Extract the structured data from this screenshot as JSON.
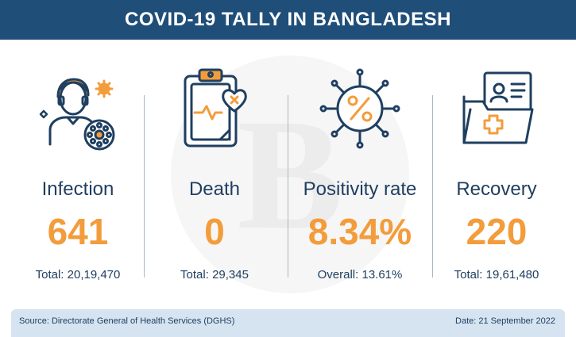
{
  "header": {
    "title": "COVID-19 TALLY IN BANGLADESH"
  },
  "watermark": {
    "letter": "B"
  },
  "colors": {
    "header": "#1f4e79",
    "accent": "#f39c3b",
    "text": "#1f3f60",
    "footer": "#d6e4f2"
  },
  "stats": [
    {
      "icon": "person-virus-icon",
      "label": "Infection",
      "value": "641",
      "sub": "Total: 20,19,470"
    },
    {
      "icon": "clipboard-heart-icon",
      "label": "Death",
      "value": "0",
      "sub": "Total: 29,345"
    },
    {
      "icon": "virus-percent-icon",
      "label": "Positivity rate",
      "value": "8.34%",
      "sub": "Overall: 13.61%"
    },
    {
      "icon": "medical-folder-icon",
      "label": "Recovery",
      "value": "220",
      "sub": "Total: 19,61,480"
    }
  ],
  "footer": {
    "source": "Source: Directorate General of Health Services (DGHS)",
    "date": "Date: 21 September 2022"
  }
}
